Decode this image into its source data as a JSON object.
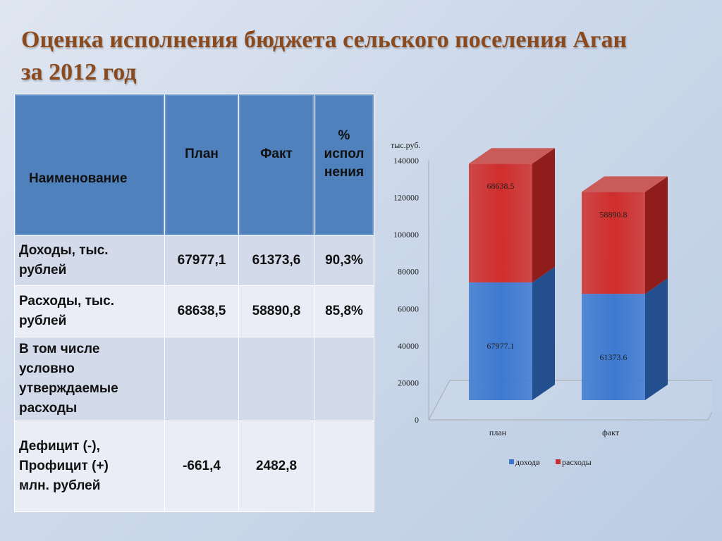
{
  "title_line1": "Оценка исполнения бюджета сельского поселения Аган",
  "title_line2": "за 2012 год",
  "table": {
    "headers": [
      "Наименование",
      "План",
      "Факт",
      "%",
      "испол",
      "нения"
    ],
    "rows": [
      {
        "name1": "Доходы, тыс.",
        "name2": "рублей",
        "plan": "67977,1",
        "fact": "61373,6",
        "pct": "90,3%"
      },
      {
        "name1": "Расходы, тыс.",
        "name2": "рублей",
        "plan": "68638,5",
        "fact": "58890,8",
        "pct": "85,8%"
      },
      {
        "name1": "В том числе",
        "name2": "условно",
        "name3": "утверждаемые",
        "name4": "расходы",
        "plan": "",
        "fact": "",
        "pct": ""
      },
      {
        "name1": "Дефицит (-),",
        "name2": "Профицит (+)",
        "name3": "млн. рублей",
        "plan": "-661,4",
        "fact": "2482,8",
        "pct": ""
      }
    ]
  },
  "chart_data": {
    "type": "bar",
    "stacked": true,
    "three_d": true,
    "categories": [
      "план",
      "факт"
    ],
    "series": [
      {
        "name": "доходв",
        "values": [
          67977.1,
          61373.6
        ],
        "color": "#3d77c9",
        "labels": [
          "67977.1",
          "61373.6"
        ]
      },
      {
        "name": "расходы",
        "values": [
          68638.5,
          58890.8
        ],
        "color": "#c63030",
        "labels": [
          "68638.5",
          "58890.8"
        ]
      }
    ],
    "ylabel": "тыс.руб.",
    "ylim": [
      0,
      140000
    ],
    "yticks": [
      "0",
      "20000",
      "40000",
      "60000",
      "80000",
      "100000",
      "120000",
      "140000"
    ],
    "legend_position": "bottom"
  }
}
